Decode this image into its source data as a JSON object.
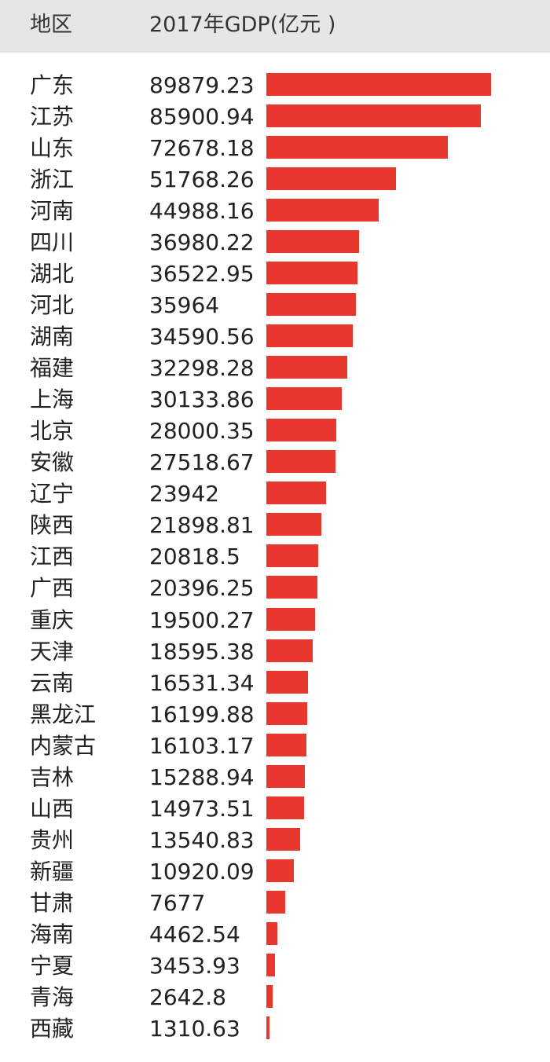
{
  "header": {
    "region_label": "地区",
    "gdp_label": "2017年GDP(亿元 )"
  },
  "colors": {
    "bar": "#e8372c",
    "header_bg": "#e6e6e6"
  },
  "chart_data": {
    "type": "bar",
    "orientation": "horizontal",
    "categories": [
      "广东",
      "江苏",
      "山东",
      "浙江",
      "河南",
      "四川",
      "湖北",
      "河北",
      "湖南",
      "福建",
      "上海",
      "北京",
      "安徽",
      "辽宁",
      "陕西",
      "江西",
      "广西",
      "重庆",
      "天津",
      "云南",
      "黑龙江",
      "内蒙古",
      "吉林",
      "山西",
      "贵州",
      "新疆",
      "甘肃",
      "海南",
      "宁夏",
      "青海",
      "西藏"
    ],
    "values": [
      89879.23,
      85900.94,
      72678.18,
      51768.26,
      44988.16,
      36980.22,
      36522.95,
      35964,
      34590.56,
      32298.28,
      30133.86,
      28000.35,
      27518.67,
      23942,
      21898.81,
      20818.5,
      20396.25,
      19500.27,
      18595.38,
      16531.34,
      16199.88,
      16103.17,
      15288.94,
      14973.51,
      13540.83,
      10920.09,
      7677,
      4462.54,
      3453.93,
      2642.8,
      1310.63
    ],
    "labels": [
      "89879.23",
      "85900.94",
      "72678.18",
      "51768.26",
      "44988.16",
      "36980.22",
      "36522.95",
      "35964",
      "34590.56",
      "32298.28",
      "30133.86",
      "28000.35",
      "27518.67",
      "23942",
      "21898.81",
      "20818.5",
      "20396.25",
      "19500.27",
      "18595.38",
      "16531.34",
      "16199.88",
      "16103.17",
      "15288.94",
      "14973.51",
      "13540.83",
      "10920.09",
      "7677",
      "4462.54",
      "3453.93",
      "2642.8",
      "1310.63"
    ],
    "xlim": [
      0,
      89879.23
    ],
    "grid": false
  }
}
